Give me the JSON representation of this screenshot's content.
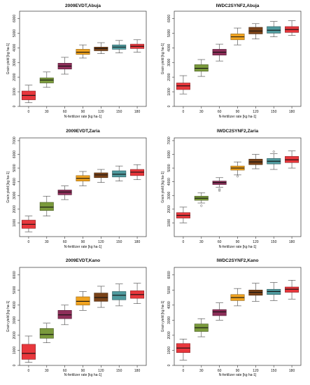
{
  "figure": {
    "background": "#ffffff"
  },
  "colors": {
    "0": "#e8373c",
    "30": "#7a9a3c",
    "60": "#8e2f5a",
    "90": "#f0a320",
    "120": "#7a4218",
    "150": "#4f9a9e",
    "180": "#e8373c"
  },
  "chart_data": [
    {
      "type": "box",
      "title": "2009EVDT,Abuja",
      "xlabel": "N-fertilizer rate [kg ha-1]",
      "ylabel": "Grain yield [kg ha-1]",
      "categories": [
        "0",
        "30",
        "60",
        "90",
        "120",
        "150",
        "180"
      ],
      "ylim": [
        0,
        6500
      ],
      "yticks": [
        0,
        1000,
        2000,
        3000,
        4000,
        5000,
        6000
      ],
      "grid": false,
      "boxes": [
        {
          "min": 250,
          "q1": 450,
          "median": 750,
          "q3": 1050,
          "max": 1450,
          "outliers": []
        },
        {
          "min": 1300,
          "q1": 1600,
          "median": 1800,
          "q3": 1950,
          "max": 2350,
          "outliers": []
        },
        {
          "min": 2200,
          "q1": 2550,
          "median": 2750,
          "q3": 2950,
          "max": 3350,
          "outliers": []
        },
        {
          "min": 3300,
          "q1": 3550,
          "median": 3700,
          "q3": 3900,
          "max": 4200,
          "outliers": []
        },
        {
          "min": 3600,
          "q1": 3800,
          "median": 3950,
          "q3": 4050,
          "max": 4350,
          "outliers": []
        },
        {
          "min": 3650,
          "q1": 3900,
          "median": 4050,
          "q3": 4200,
          "max": 4500,
          "outliers": []
        },
        {
          "min": 3700,
          "q1": 3950,
          "median": 4100,
          "q3": 4250,
          "max": 4550,
          "outliers": []
        }
      ]
    },
    {
      "type": "box",
      "title": "IWDC2SYNF2,Abuja",
      "xlabel": "N-fertilizer rate [kg ha-1]",
      "ylabel": "Grain yield [kg ha-1]",
      "categories": [
        "0",
        "30",
        "60",
        "90",
        "120",
        "150",
        "180"
      ],
      "ylim": [
        0,
        6500
      ],
      "yticks": [
        0,
        1000,
        2000,
        3000,
        4000,
        5000,
        6000
      ],
      "grid": false,
      "boxes": [
        {
          "min": 850,
          "q1": 1150,
          "median": 1400,
          "q3": 1600,
          "max": 2100,
          "outliers": []
        },
        {
          "min": 2050,
          "q1": 2400,
          "median": 2600,
          "q3": 2850,
          "max": 3200,
          "outliers": []
        },
        {
          "min": 3100,
          "q1": 3500,
          "median": 3700,
          "q3": 3900,
          "max": 4250,
          "outliers": []
        },
        {
          "min": 4200,
          "q1": 4550,
          "median": 4750,
          "q3": 4950,
          "max": 5350,
          "outliers": []
        },
        {
          "min": 4600,
          "q1": 4950,
          "median": 5150,
          "q3": 5400,
          "max": 5650,
          "outliers": []
        },
        {
          "min": 4750,
          "q1": 5000,
          "median": 5200,
          "q3": 5450,
          "max": 5800,
          "outliers": []
        },
        {
          "min": 4850,
          "q1": 5050,
          "median": 5250,
          "q3": 5450,
          "max": 5850,
          "outliers": []
        }
      ]
    },
    {
      "type": "box",
      "title": "2009EVDT,Zaria",
      "xlabel": "N-fertilizer rate [kg ha-1]",
      "ylabel": "Grain yield [kg ha-1]",
      "categories": [
        "0",
        "30",
        "60",
        "90",
        "120",
        "150",
        "180"
      ],
      "ylim": [
        0,
        7200
      ],
      "yticks": [
        1000,
        2000,
        3000,
        4000,
        5000,
        6000,
        7000
      ],
      "grid": false,
      "boxes": [
        {
          "min": 350,
          "q1": 600,
          "median": 900,
          "q3": 1200,
          "max": 1500,
          "outliers": []
        },
        {
          "min": 1500,
          "q1": 1900,
          "median": 2150,
          "q3": 2500,
          "max": 2950,
          "outliers": []
        },
        {
          "min": 2700,
          "q1": 3050,
          "median": 3250,
          "q3": 3400,
          "max": 3700,
          "outliers": []
        },
        {
          "min": 3700,
          "q1": 4050,
          "median": 4250,
          "q3": 4450,
          "max": 4750,
          "outliers": []
        },
        {
          "min": 3950,
          "q1": 4300,
          "median": 4500,
          "q3": 4650,
          "max": 4900,
          "outliers": []
        },
        {
          "min": 4050,
          "q1": 4350,
          "median": 4550,
          "q3": 4800,
          "max": 5150,
          "outliers": []
        },
        {
          "min": 4150,
          "q1": 4450,
          "median": 4700,
          "q3": 4900,
          "max": 5250,
          "outliers": []
        }
      ]
    },
    {
      "type": "box",
      "title": "IWDC2SYNF2,Zaria",
      "xlabel": "N-fertilizer rate [kg ha-1]",
      "ylabel": "Grain yield [kg ha-1]",
      "categories": [
        "0",
        "30",
        "60",
        "90",
        "120",
        "150",
        "180"
      ],
      "ylim": [
        0,
        7200
      ],
      "yticks": [
        1000,
        2000,
        3000,
        4000,
        5000,
        6000,
        7000
      ],
      "grid": false,
      "boxes": [
        {
          "min": 1000,
          "q1": 1350,
          "median": 1550,
          "q3": 1750,
          "max": 2150,
          "outliers": []
        },
        {
          "min": 2450,
          "q1": 2650,
          "median": 2800,
          "q3": 2950,
          "max": 3200,
          "outliers": [
            2250
          ]
        },
        {
          "min": 3600,
          "q1": 3800,
          "median": 3950,
          "q3": 4050,
          "max": 4300,
          "outliers": [
            3450,
            3350
          ]
        },
        {
          "min": 4500,
          "q1": 4850,
          "median": 5000,
          "q3": 5150,
          "max": 5450,
          "outliers": [
            4400
          ]
        },
        {
          "min": 4950,
          "q1": 5250,
          "median": 5450,
          "q3": 5650,
          "max": 6000,
          "outliers": []
        },
        {
          "min": 4900,
          "q1": 5300,
          "median": 5500,
          "q3": 5700,
          "max": 6050,
          "outliers": [
            6200
          ]
        },
        {
          "min": 5000,
          "q1": 5400,
          "median": 5600,
          "q3": 5850,
          "max": 6250,
          "outliers": []
        }
      ]
    },
    {
      "type": "box",
      "title": "2009EVDT,Kano",
      "xlabel": "N-fertilizer rate [kg ha-1]",
      "ylabel": "Grain yield [kg ha-1]",
      "categories": [
        "0",
        "30",
        "60",
        "90",
        "120",
        "150",
        "180"
      ],
      "ylim": [
        0,
        6500
      ],
      "yticks": [
        0,
        1000,
        2000,
        3000,
        4000,
        5000,
        6000
      ],
      "grid": false,
      "boxes": [
        {
          "min": 200,
          "q1": 400,
          "median": 800,
          "q3": 1400,
          "max": 1950,
          "outliers": []
        },
        {
          "min": 1500,
          "q1": 1800,
          "median": 2050,
          "q3": 2450,
          "max": 2800,
          "outliers": []
        },
        {
          "min": 2700,
          "q1": 3100,
          "median": 3350,
          "q3": 3650,
          "max": 4000,
          "outliers": []
        },
        {
          "min": 3650,
          "q1": 4000,
          "median": 4250,
          "q3": 4550,
          "max": 4900,
          "outliers": []
        },
        {
          "min": 3850,
          "q1": 4250,
          "median": 4500,
          "q3": 4800,
          "max": 5250,
          "outliers": []
        },
        {
          "min": 3950,
          "q1": 4350,
          "median": 4650,
          "q3": 4900,
          "max": 5400,
          "outliers": []
        },
        {
          "min": 4100,
          "q1": 4450,
          "median": 4700,
          "q3": 4950,
          "max": 5450,
          "outliers": []
        }
      ]
    },
    {
      "type": "box",
      "title": "IWDC2SYNF2,Kano",
      "xlabel": "N-fertilizer rate [kg ha-1]",
      "ylabel": "Grain yield [kg ha-1]",
      "categories": [
        "0",
        "30",
        "60",
        "90",
        "120",
        "150",
        "180"
      ],
      "ylim": [
        0,
        6500
      ],
      "yticks": [
        0,
        1000,
        2000,
        3000,
        4000,
        5000,
        6000
      ],
      "grid": false,
      "boxes": [
        {
          "min": 350,
          "q1": 850,
          "median": 1150,
          "q3": 1450,
          "max": 1750,
          "outliers": []
        },
        {
          "min": 1900,
          "q1": 2250,
          "median": 2500,
          "q3": 2750,
          "max": 3100,
          "outliers": []
        },
        {
          "min": 3000,
          "q1": 3300,
          "median": 3550,
          "q3": 3700,
          "max": 4150,
          "outliers": []
        },
        {
          "min": 3950,
          "q1": 4300,
          "median": 4500,
          "q3": 4700,
          "max": 5100,
          "outliers": []
        },
        {
          "min": 4250,
          "q1": 4650,
          "median": 4850,
          "q3": 5000,
          "max": 5450,
          "outliers": []
        },
        {
          "min": 4300,
          "q1": 4700,
          "median": 4900,
          "q3": 5050,
          "max": 5500,
          "outliers": []
        },
        {
          "min": 4400,
          "q1": 4850,
          "median": 5050,
          "q3": 5200,
          "max": 5650,
          "outliers": []
        }
      ]
    }
  ]
}
